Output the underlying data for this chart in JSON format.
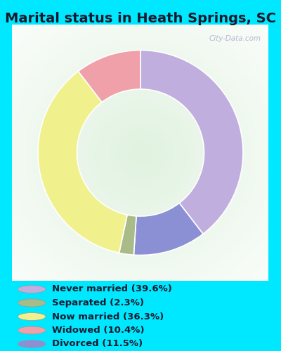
{
  "title": "Marital status in Heath Springs, SC",
  "slices": [
    39.6,
    11.5,
    2.3,
    36.3,
    10.4
  ],
  "slice_order_labels": [
    "Never married",
    "Divorced",
    "Separated",
    "Now married",
    "Widowed"
  ],
  "colors": [
    "#c0aede",
    "#8b8fd4",
    "#a8bb88",
    "#f0f08c",
    "#f0a0a8"
  ],
  "labels": [
    "Never married (39.6%)",
    "Separated (2.3%)",
    "Now married (36.3%)",
    "Widowed (10.4%)",
    "Divorced (11.5%)"
  ],
  "legend_colors": [
    "#c0aede",
    "#a8bb88",
    "#f0f08c",
    "#f0a0a8",
    "#8b8fd4"
  ],
  "background_color_outer": "#00e8ff",
  "title_fontsize": 14,
  "watermark": "City-Data.com",
  "start_angle": 90,
  "donut_width": 0.38
}
